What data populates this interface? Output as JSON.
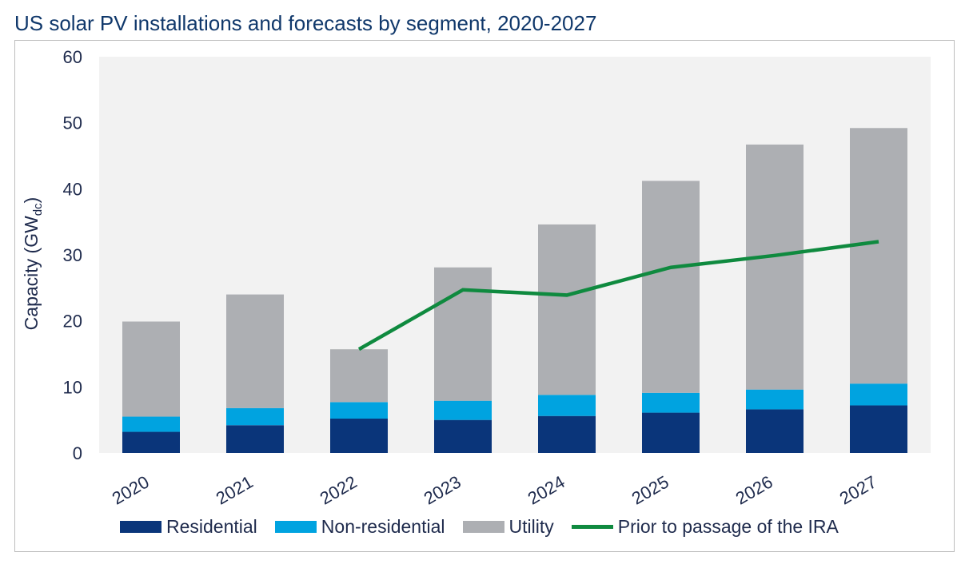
{
  "chart_data": {
    "type": "bar",
    "stacked": true,
    "title": "US solar PV installations and forecasts by segment, 2020-2027",
    "ylabel": "Capacity (GW",
    "ylabel_sub": "dc",
    "ylabel_close": ")",
    "xlabel": "",
    "ylim": [
      0,
      60
    ],
    "yticks": [
      "0",
      "10",
      "20",
      "30",
      "40",
      "50",
      "60"
    ],
    "categories": [
      "2020",
      "2021",
      "2022",
      "2023",
      "2024",
      "2025",
      "2026",
      "2027"
    ],
    "series": [
      {
        "name": "Residential",
        "color": "#0a357a",
        "values": [
          3.2,
          4.2,
          5.2,
          5.0,
          5.6,
          6.1,
          6.6,
          7.2
        ]
      },
      {
        "name": "Non-residential",
        "color": "#00a3e0",
        "values": [
          2.3,
          2.6,
          2.5,
          2.9,
          3.2,
          3.0,
          3.0,
          3.3
        ]
      },
      {
        "name": "Utility",
        "color": "#adafb3",
        "values": [
          14.4,
          17.2,
          8.0,
          20.2,
          25.8,
          32.1,
          37.1,
          38.7
        ]
      },
      {
        "name": "Prior to passage of the IRA",
        "color": "#0f8a3f",
        "type": "line",
        "values": [
          null,
          null,
          15.7,
          24.7,
          23.9,
          28.1,
          29.9,
          32.0
        ]
      }
    ],
    "plot_background": "#f2f2f2",
    "grid": false,
    "legend_position": "bottom"
  }
}
